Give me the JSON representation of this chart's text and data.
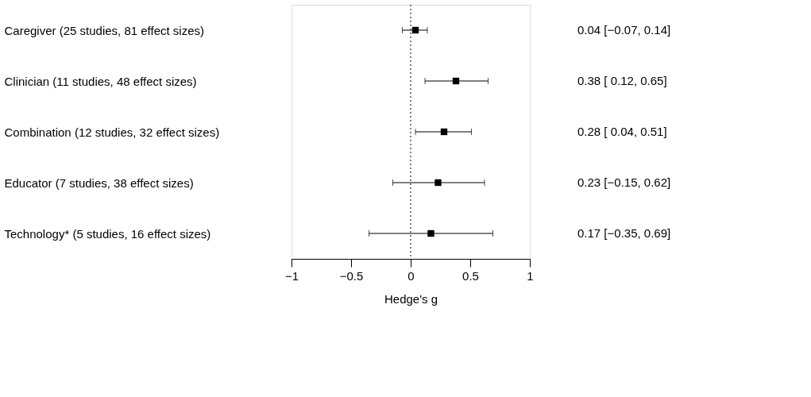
{
  "chart_data": {
    "type": "scatter",
    "orientation": "horizontal",
    "xlabel": "Hedge's g",
    "categories": [
      "Caregiver (25 studies, 81 effect sizes)",
      "Clinician (11 studies, 48 effect sizes)",
      "Combination (12 studies, 32 effect sizes)",
      "Educator (7 studies, 38 effect sizes)",
      "Technology* (5 studies, 16 effect sizes)"
    ],
    "values": [
      0.04,
      0.38,
      0.28,
      0.23,
      0.17
    ],
    "errors": [
      [
        -0.07,
        0.14
      ],
      [
        0.12,
        0.65
      ],
      [
        0.04,
        0.51
      ],
      [
        -0.15,
        0.62
      ],
      [
        -0.35,
        0.69
      ]
    ],
    "value_labels": [
      "0.04 [−0.07, 0.14]",
      "0.38 [ 0.12, 0.65]",
      "0.28 [ 0.04, 0.51]",
      "0.23 [−0.15, 0.62]",
      "0.17 [−0.35, 0.69]"
    ],
    "color": "#000000",
    "marker": "square",
    "xlim": [
      -1,
      1
    ],
    "xticks": [
      -1,
      -0.5,
      0,
      0.5,
      1
    ],
    "ref_lines": [
      {
        "axis": "x",
        "value": 0,
        "line_style": "dotted"
      }
    ]
  }
}
